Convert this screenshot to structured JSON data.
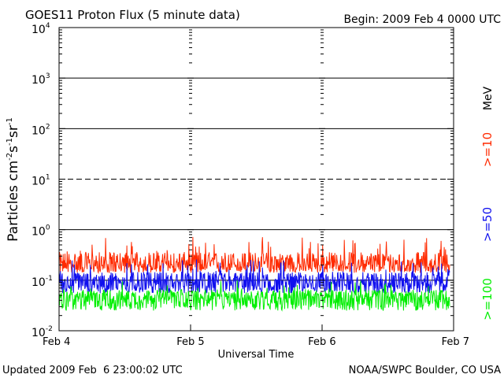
{
  "chart_data": {
    "type": "line",
    "title": "GOES11 Proton Flux (5 minute data)",
    "begin_label": "Begin: 2009 Feb 4 0000 UTC",
    "xlabel": "Universal Time",
    "ylabel": {
      "base": "Particles cm",
      "e1": "-2",
      "mid1": "s",
      "e2": "-1",
      "mid2": "sr",
      "e3": "-1"
    },
    "footer_left": "Updated 2009 Feb  6 23:00:02 UTC",
    "footer_right": "NOAA/SWPC Boulder, CO USA",
    "unit_label": "MeV",
    "y_scale": "log",
    "ylim": [
      0.01,
      10000
    ],
    "y_ticks": [
      {
        "base": "10",
        "exp": "4"
      },
      {
        "base": "10",
        "exp": "3"
      },
      {
        "base": "10",
        "exp": "2"
      },
      {
        "base": "10",
        "exp": "1"
      },
      {
        "base": "10",
        "exp": "0"
      },
      {
        "base": "10",
        "exp": "-1"
      },
      {
        "base": "10",
        "exp": "-2"
      }
    ],
    "x_ticks": [
      "Feb 4",
      "Feb 5",
      "Feb 6",
      "Feb 7"
    ],
    "xlim_days": [
      0,
      3
    ],
    "reference_levels": [
      {
        "value": 1000,
        "style": "solid"
      },
      {
        "value": 100,
        "style": "solid"
      },
      {
        "value": 10,
        "style": "dashed"
      },
      {
        "value": 1,
        "style": "solid"
      },
      {
        "value": 0.1,
        "style": "solid"
      }
    ],
    "series": [
      {
        "name": ">=10",
        "color": "#ff2a00",
        "baseline": 0.2,
        "range": [
          0.14,
          0.75
        ]
      },
      {
        "name": ">=50",
        "color": "#1010ee",
        "baseline": 0.09,
        "range": [
          0.055,
          0.26
        ]
      },
      {
        "name": ">=100",
        "color": "#00ee00",
        "baseline": 0.045,
        "range": [
          0.025,
          0.1
        ]
      }
    ]
  }
}
